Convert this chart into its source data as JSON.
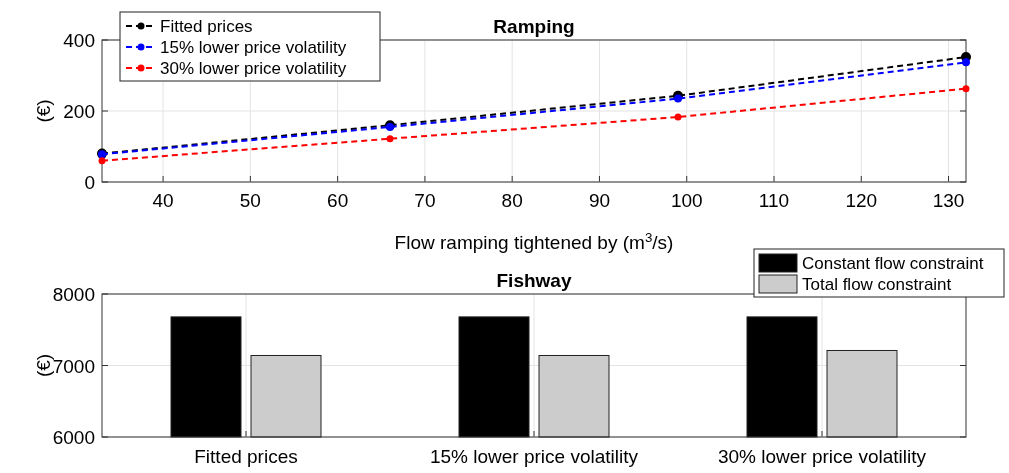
{
  "chart_data": [
    {
      "type": "line",
      "title": "Ramping",
      "xlabel": "Flow ramping tightened by (m$^{3}$/s)",
      "ylabel": "(€)",
      "xlim": [
        33,
        132
      ],
      "xticks": [
        40,
        50,
        60,
        70,
        80,
        90,
        100,
        110,
        120,
        130
      ],
      "ylim": [
        0,
        400
      ],
      "yticks": [
        0,
        200,
        400
      ],
      "grid": true,
      "legend": "top left",
      "marker": "circle",
      "line_style": "dashed",
      "series": [
        {
          "name": "Fitted prices",
          "color": "#000000",
          "x": [
            33,
            66,
            99,
            132
          ],
          "values": [
            80,
            160,
            243,
            352
          ]
        },
        {
          "name": "15% lower price volatility",
          "color": "#0000ff",
          "x": [
            33,
            66,
            99,
            132
          ],
          "values": [
            78,
            155,
            235,
            337
          ]
        },
        {
          "name": "30% lower price volatility",
          "color": "#ff0000",
          "x": [
            33,
            66,
            99,
            132
          ],
          "values": [
            60,
            122,
            183,
            263
          ]
        }
      ]
    },
    {
      "type": "bar",
      "title": "Fishway",
      "ylabel": "(€)",
      "categories": [
        "Fitted prices",
        "15% lower price volatility",
        "30% lower price volatility"
      ],
      "ylim": [
        6000,
        8000
      ],
      "yticks": [
        6000,
        7000,
        8000
      ],
      "grid": true,
      "legend": "top right",
      "series": [
        {
          "name": "Constant flow constraint",
          "color": "#000000",
          "values": [
            7680,
            7680,
            7680
          ]
        },
        {
          "name": "Total flow constraint",
          "color": "#cccccc",
          "values": [
            7140,
            7140,
            7210
          ]
        }
      ]
    }
  ]
}
